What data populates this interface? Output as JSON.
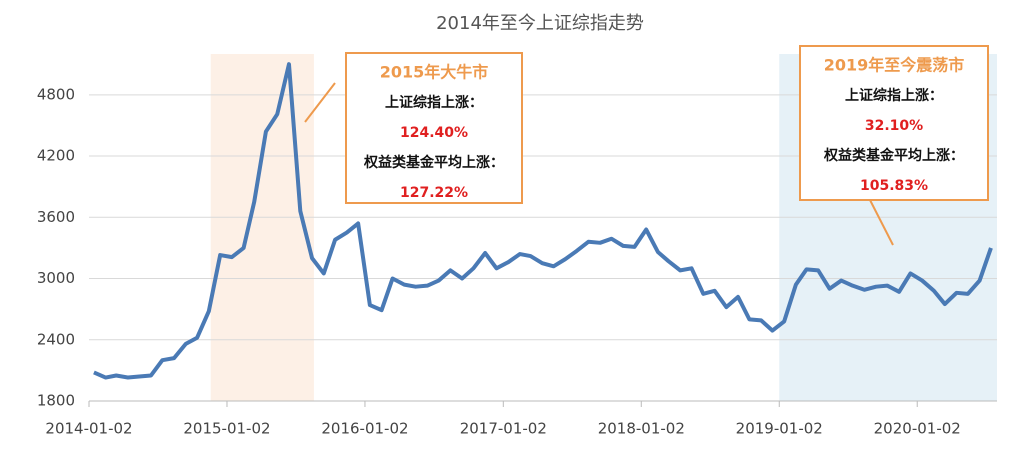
{
  "chart_data": {
    "type": "line",
    "title": "2014年至今上证综指走势",
    "x": [
      "2014-01-15",
      "2014-02-15",
      "2014-03-15",
      "2014-04-15",
      "2014-05-15",
      "2014-06-15",
      "2014-07-15",
      "2014-08-15",
      "2014-09-15",
      "2014-10-15",
      "2014-11-15",
      "2014-12-15",
      "2015-01-15",
      "2015-02-15",
      "2015-03-15",
      "2015-04-15",
      "2015-05-15",
      "2015-06-15",
      "2015-07-15",
      "2015-08-15",
      "2015-09-15",
      "2015-10-15",
      "2015-11-15",
      "2015-12-15",
      "2016-01-15",
      "2016-02-15",
      "2016-03-15",
      "2016-04-15",
      "2016-05-15",
      "2016-06-15",
      "2016-07-15",
      "2016-08-15",
      "2016-09-15",
      "2016-10-15",
      "2016-11-15",
      "2016-12-15",
      "2017-01-15",
      "2017-02-15",
      "2017-03-15",
      "2017-04-15",
      "2017-05-15",
      "2017-06-15",
      "2017-07-15",
      "2017-08-15",
      "2017-09-15",
      "2017-10-15",
      "2017-11-15",
      "2017-12-15",
      "2018-01-15",
      "2018-02-15",
      "2018-03-15",
      "2018-04-15",
      "2018-05-15",
      "2018-06-15",
      "2018-07-15",
      "2018-08-15",
      "2018-09-15",
      "2018-10-15",
      "2018-11-15",
      "2018-12-15",
      "2019-01-15",
      "2019-02-15",
      "2019-03-15",
      "2019-04-15",
      "2019-05-15",
      "2019-06-15",
      "2019-07-15",
      "2019-08-15",
      "2019-09-15",
      "2019-10-15",
      "2019-11-15",
      "2019-12-15",
      "2020-01-15",
      "2020-02-15",
      "2020-03-15",
      "2020-04-15",
      "2020-05-15",
      "2020-06-15",
      "2020-07-15"
    ],
    "series": [
      {
        "name": "上证综指",
        "color": "#4a7ab5",
        "values": [
          2080,
          2030,
          2050,
          2030,
          2040,
          2050,
          2200,
          2220,
          2360,
          2420,
          2680,
          3230,
          3210,
          3300,
          3750,
          4440,
          4610,
          5100,
          3660,
          3200,
          3050,
          3380,
          3450,
          3540,
          2740,
          2690,
          3000,
          2940,
          2920,
          2930,
          2980,
          3080,
          3000,
          3100,
          3250,
          3100,
          3160,
          3240,
          3220,
          3150,
          3120,
          3190,
          3270,
          3360,
          3350,
          3390,
          3320,
          3310,
          3480,
          3260,
          3170,
          3080,
          3100,
          2850,
          2880,
          2720,
          2820,
          2600,
          2590,
          2490,
          2580,
          2940,
          3090,
          3080,
          2900,
          2980,
          2930,
          2890,
          2920,
          2930,
          2870,
          3050,
          2980,
          2880,
          2750,
          2860,
          2850,
          2980,
          3300
        ]
      }
    ],
    "xlim": [
      "2014-01-02",
      "2020-07-31"
    ],
    "xticks": [
      "2014-01-02",
      "2015-01-02",
      "2016-01-02",
      "2017-01-02",
      "2018-01-02",
      "2019-01-02",
      "2020-01-02"
    ],
    "ylim": [
      1800,
      5200
    ],
    "yticks": [
      1800,
      2400,
      3000,
      3600,
      4200,
      4800
    ],
    "grid": true,
    "highlights": [
      {
        "start": "2014-11-20",
        "end": "2015-08-20",
        "color": "#fdf0e6",
        "title": "2015年大牛市",
        "lines": [
          "上证综指上涨：",
          "124.40%",
          "权益类基金平均上涨：",
          "127.22%"
        ]
      },
      {
        "start": "2019-01-02",
        "end": "2020-07-31",
        "color": "#e6f1f7",
        "title": "2019年至今震荡市",
        "lines": [
          "上证综指上涨：",
          "32.10%",
          "权益类基金平均上涨：",
          "105.83%"
        ]
      }
    ]
  }
}
